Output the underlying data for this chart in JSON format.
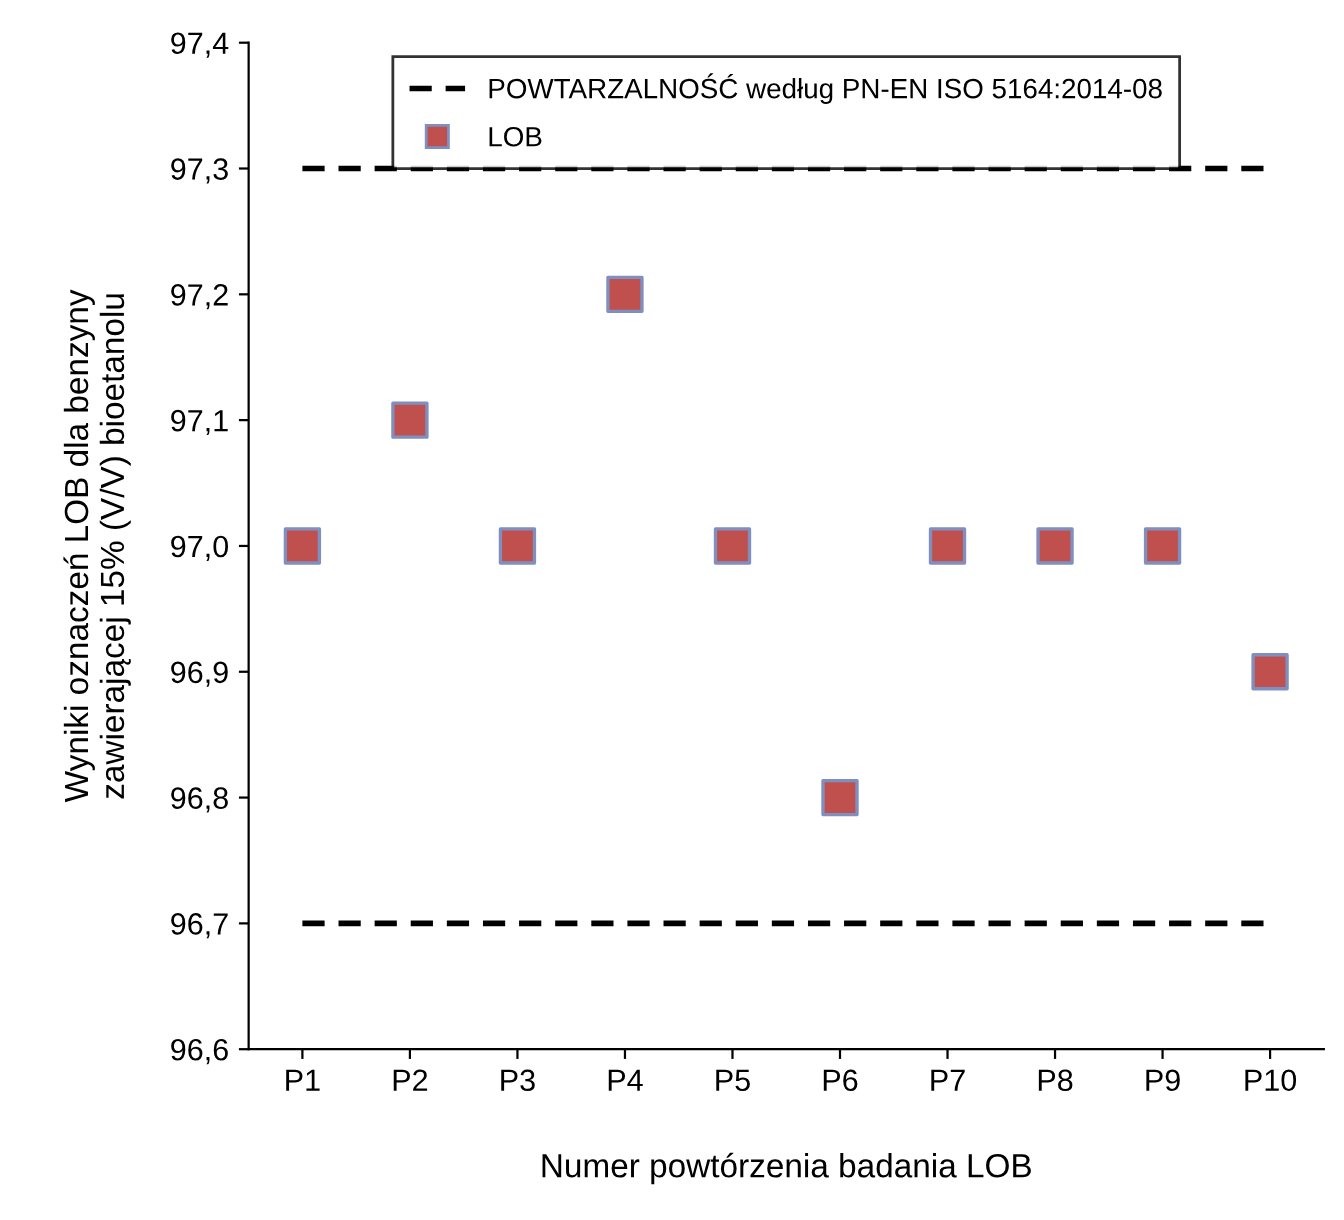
{
  "chart_data": {
    "type": "scatter",
    "xlabel": "Numer powtórzenia badania LOB",
    "ylabel": "Wyniki oznaczeń LOB dla benzyny\nzawierającej 15% (V/V) bioetanolu",
    "categories": [
      "P1",
      "P2",
      "P3",
      "P4",
      "P5",
      "P6",
      "P7",
      "P8",
      "P9",
      "P10"
    ],
    "series": [
      {
        "type": "line",
        "name": "POWTARZALNOŚĆ według PN-EN ISO 5164:2014-08",
        "color": "#000000",
        "line_style": "dashed",
        "marker": "none",
        "values": [
          97.3,
          97.3,
          97.3,
          97.3,
          97.3,
          97.3,
          97.3,
          97.3,
          97.3,
          97.3
        ]
      },
      {
        "type": "line",
        "color": "#000000",
        "line_style": "dashed",
        "marker": "none",
        "values": [
          96.7,
          96.7,
          96.7,
          96.7,
          96.7,
          96.7,
          96.7,
          96.7,
          96.7,
          96.7
        ]
      },
      {
        "name": "LOB",
        "color": "#c0504d",
        "marker": "square",
        "values": [
          97.0,
          97.1,
          97.0,
          97.2,
          97.0,
          96.8,
          97.0,
          97.0,
          97.0,
          96.9
        ]
      }
    ],
    "ylim": [
      96.6,
      97.4
    ],
    "yticks": [
      {
        "value": 96.6,
        "label": "96,6"
      },
      {
        "value": 96.7,
        "label": "96,7"
      },
      {
        "value": 96.8,
        "label": "96,8"
      },
      {
        "value": 96.9,
        "label": "96,9"
      },
      {
        "value": 97.0,
        "label": "97,0"
      },
      {
        "value": 97.1,
        "label": "97,1"
      },
      {
        "value": 97.2,
        "label": "97,2"
      },
      {
        "value": 97.3,
        "label": "97,3"
      },
      {
        "value": 97.4,
        "label": "97,4"
      }
    ],
    "legend": "top",
    "grid": false
  }
}
